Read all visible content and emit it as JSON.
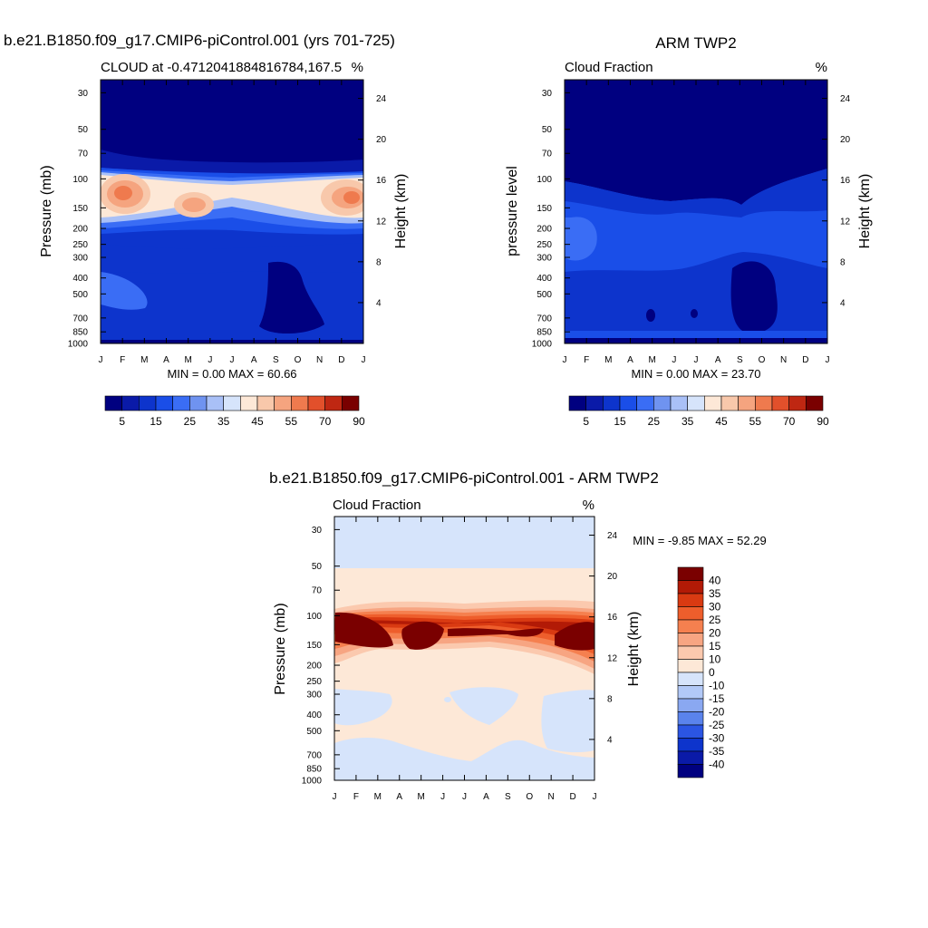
{
  "panels": [
    {
      "id": "model",
      "title": "b.e21.B1850.f09_g17.CMIP6-piControl.001 (yrs 701-725)",
      "left_label": "CLOUD at -0.4712041884816784,167.5",
      "right_label": "%",
      "ylabel": "Pressure (mb)",
      "ylabel_right": "Height (km)",
      "minmax_text": "MIN =   0.00 MAX =  60.66",
      "colorbar_ticks": [
        "5",
        "15",
        "25",
        "35",
        "45",
        "55",
        "70",
        "90"
      ]
    },
    {
      "id": "obs",
      "title": "ARM TWP2",
      "left_label": "Cloud Fraction",
      "right_label": "%",
      "ylabel": "pressure level",
      "ylabel_right": "Height (km)",
      "minmax_text": "MIN =   0.00 MAX =  23.70",
      "colorbar_ticks": [
        "5",
        "15",
        "25",
        "35",
        "45",
        "55",
        "70",
        "90"
      ]
    },
    {
      "id": "diff",
      "title": "b.e21.B1850.f09_g17.CMIP6-piControl.001 - ARM TWP2",
      "left_label": "Cloud Fraction",
      "right_label": "%",
      "ylabel": "Pressure (mb)",
      "ylabel_right": "Height (km)",
      "minmax_text": "MIN =  -9.85 MAX =  52.29",
      "colorbar_ticks": [
        "40",
        "35",
        "30",
        "25",
        "20",
        "15",
        "10",
        "0",
        "-10",
        "-15",
        "-20",
        "-25",
        "-30",
        "-35",
        "-40"
      ]
    }
  ],
  "chart_data": [
    {
      "type": "heatmap",
      "title": "CLOUD at -0.4712041884816784,167.5",
      "x": [
        "J",
        "F",
        "M",
        "A",
        "M",
        "J",
        "J",
        "A",
        "S",
        "O",
        "N",
        "D",
        "J"
      ],
      "y_pressure_ticks": [
        30,
        50,
        70,
        100,
        150,
        200,
        250,
        300,
        400,
        500,
        700,
        850,
        1000
      ],
      "y_height_ticks": [
        24,
        20,
        16,
        12,
        8,
        4
      ],
      "ylabel": "Pressure (mb)",
      "ylabel_right": "Height (km)",
      "units": "%",
      "min": 0.0,
      "max": 60.66,
      "levels": [
        5,
        10,
        15,
        20,
        25,
        30,
        35,
        40,
        45,
        50,
        55,
        60,
        70,
        80,
        90
      ],
      "ylim": [
        1000,
        25
      ]
    },
    {
      "type": "heatmap",
      "title": "Cloud Fraction",
      "x": [
        "J",
        "F",
        "M",
        "A",
        "M",
        "J",
        "J",
        "A",
        "S",
        "O",
        "N",
        "D",
        "J"
      ],
      "y_pressure_ticks": [
        30,
        50,
        70,
        100,
        150,
        200,
        250,
        300,
        400,
        500,
        700,
        850,
        1000
      ],
      "y_height_ticks": [
        24,
        20,
        16,
        12,
        8,
        4
      ],
      "ylabel": "pressure level",
      "ylabel_right": "Height (km)",
      "units": "%",
      "min": 0.0,
      "max": 23.7,
      "levels": [
        5,
        10,
        15,
        20,
        25,
        30,
        35,
        40,
        45,
        50,
        55,
        60,
        70,
        80,
        90
      ],
      "ylim": [
        1000,
        25
      ]
    },
    {
      "type": "heatmap",
      "title": "Cloud Fraction",
      "x": [
        "J",
        "F",
        "M",
        "A",
        "M",
        "J",
        "J",
        "A",
        "S",
        "O",
        "N",
        "D",
        "J"
      ],
      "y_pressure_ticks": [
        30,
        50,
        70,
        100,
        150,
        200,
        250,
        300,
        400,
        500,
        700,
        850,
        1000
      ],
      "y_height_ticks": [
        24,
        20,
        16,
        12,
        8,
        4
      ],
      "ylabel": "Pressure (mb)",
      "ylabel_right": "Height (km)",
      "units": "%",
      "min": -9.85,
      "max": 52.29,
      "levels": [
        -40,
        -35,
        -30,
        -25,
        -20,
        -15,
        -10,
        0,
        10,
        15,
        20,
        25,
        30,
        35,
        40
      ],
      "ylim": [
        1000,
        25
      ]
    }
  ],
  "colors": {
    "seq": [
      "#000080",
      "#0a1aa8",
      "#0d34cc",
      "#1a4ee8",
      "#3a6df5",
      "#6f93f0",
      "#a9c0f7",
      "#d6e4fb",
      "#fde8d7",
      "#f8c8ab",
      "#f5a47f",
      "#ef7a4e",
      "#e2502b",
      "#bf2712",
      "#7a0000"
    ],
    "div": [
      "#7a0000",
      "#b21a06",
      "#d93a12",
      "#ee5e2c",
      "#f5804f",
      "#f7a582",
      "#fbc9ae",
      "#fde8d7",
      "#d6e4fb",
      "#b2c9f7",
      "#8aa8f1",
      "#5a83ec",
      "#2b55e3",
      "#0d34cc",
      "#0a1aa8",
      "#000080"
    ]
  }
}
